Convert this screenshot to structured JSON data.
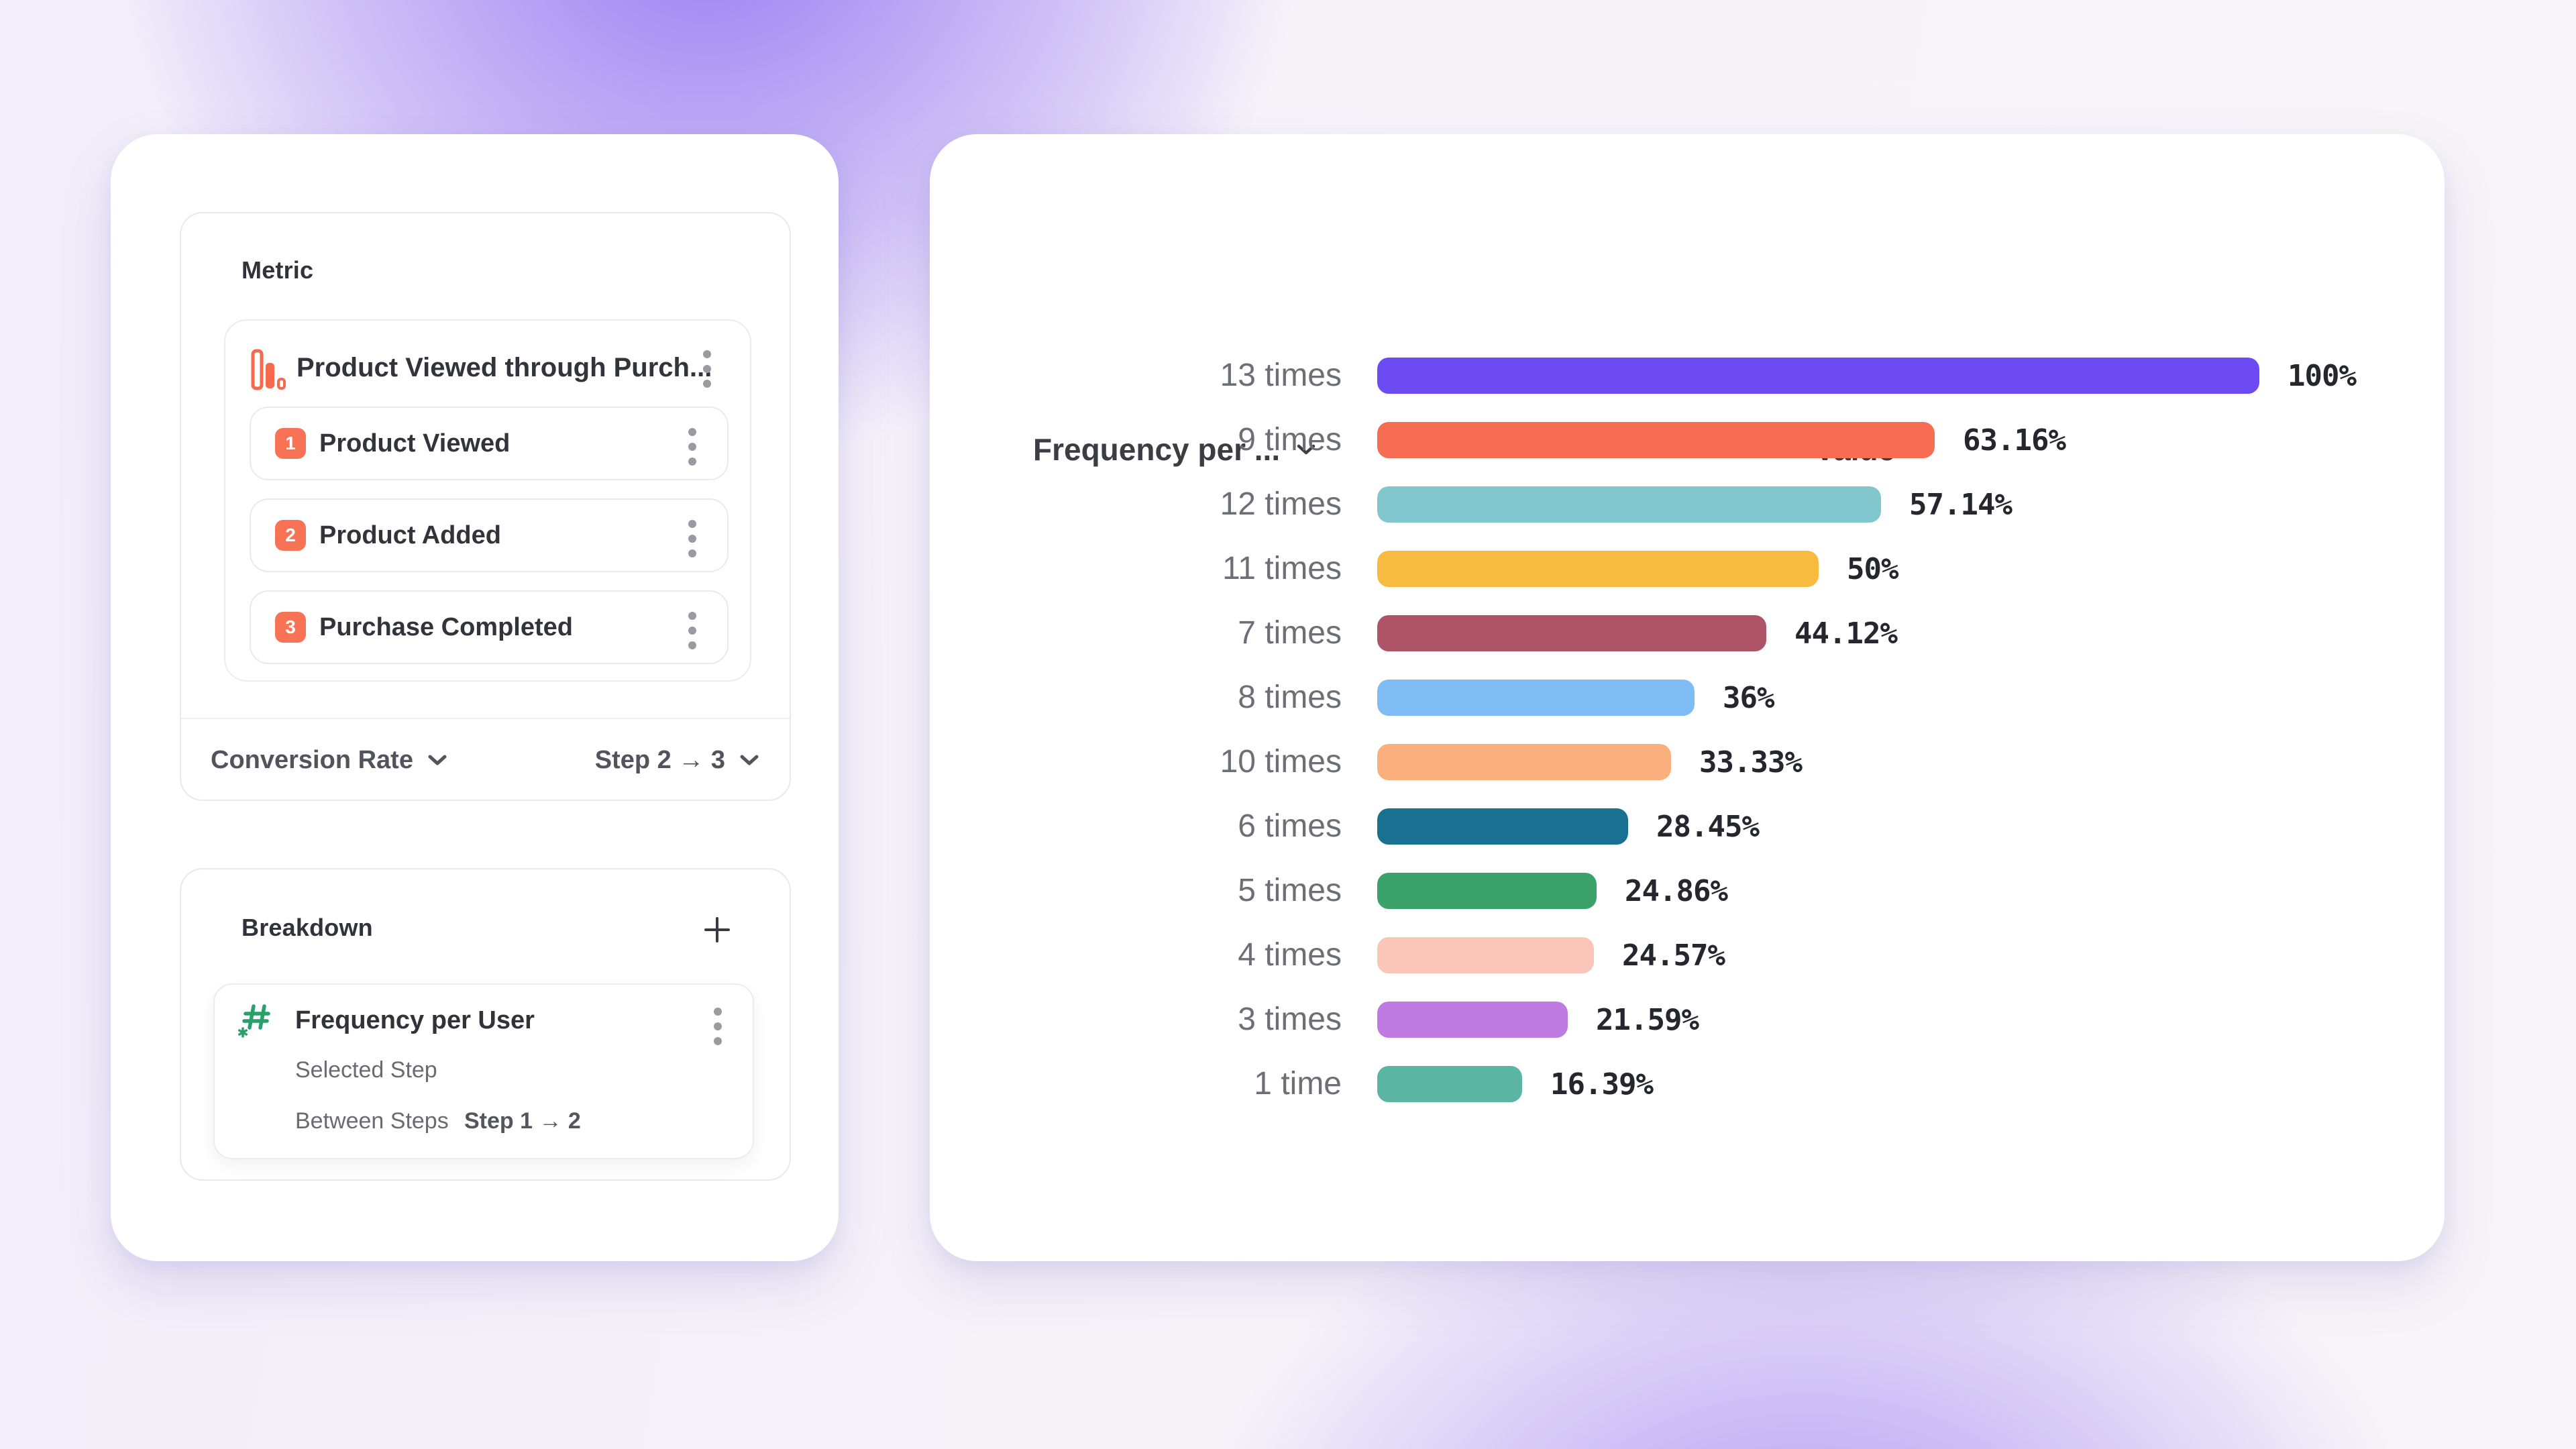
{
  "colors": {
    "accent_orange": "#F87355",
    "funnel_icon": "#F5694D",
    "hash_icon_green": "#27A06A",
    "panel_border": "#E9E8EE",
    "bar_label_gray": "#6E6E77",
    "text_dark": "#32323A"
  },
  "left_panel": {
    "metric": {
      "title": "Metric",
      "funnel_name": "Product Viewed through Purch...",
      "steps": [
        {
          "num": "1",
          "label": "Product Viewed"
        },
        {
          "num": "2",
          "label": "Product Added"
        },
        {
          "num": "3",
          "label": "Purchase Completed"
        }
      ],
      "measure_label": "Conversion Rate",
      "step_range_label": "Step 2 → 3"
    },
    "breakdown": {
      "title": "Breakdown",
      "property_name": "Frequency per User",
      "detail_rows": [
        {
          "label": "Selected Step",
          "value": ""
        },
        {
          "label": "Between Steps",
          "value": "Step 1 → 2"
        }
      ]
    }
  },
  "chart": {
    "category_header": "Frequency per ...",
    "value_header": "Value"
  },
  "chart_data": {
    "type": "bar",
    "orientation": "horizontal",
    "title": "",
    "xlabel": "Value",
    "ylabel": "Frequency per User",
    "xlim": [
      0,
      100
    ],
    "grid": false,
    "legend": false,
    "categories": [
      "13 times",
      "9 times",
      "12 times",
      "11 times",
      "7 times",
      "8 times",
      "10 times",
      "6 times",
      "5 times",
      "4 times",
      "3 times",
      "1 time"
    ],
    "values": [
      100,
      63.16,
      57.14,
      50,
      44.12,
      36,
      33.33,
      28.45,
      24.86,
      24.57,
      21.59,
      16.39
    ],
    "value_labels": [
      "100%",
      "63.16%",
      "57.14%",
      "50%",
      "44.12%",
      "36%",
      "33.33%",
      "28.45%",
      "24.86%",
      "24.57%",
      "21.59%",
      "16.39%"
    ],
    "colors": [
      "#6C4CF2",
      "#F76C52",
      "#82C7CE",
      "#F7BB3F",
      "#AE5468",
      "#7FBCF4",
      "#FBAF7C",
      "#1A7090",
      "#3BA26B",
      "#FBC5B9",
      "#C07BE2",
      "#5BB5A2"
    ]
  }
}
